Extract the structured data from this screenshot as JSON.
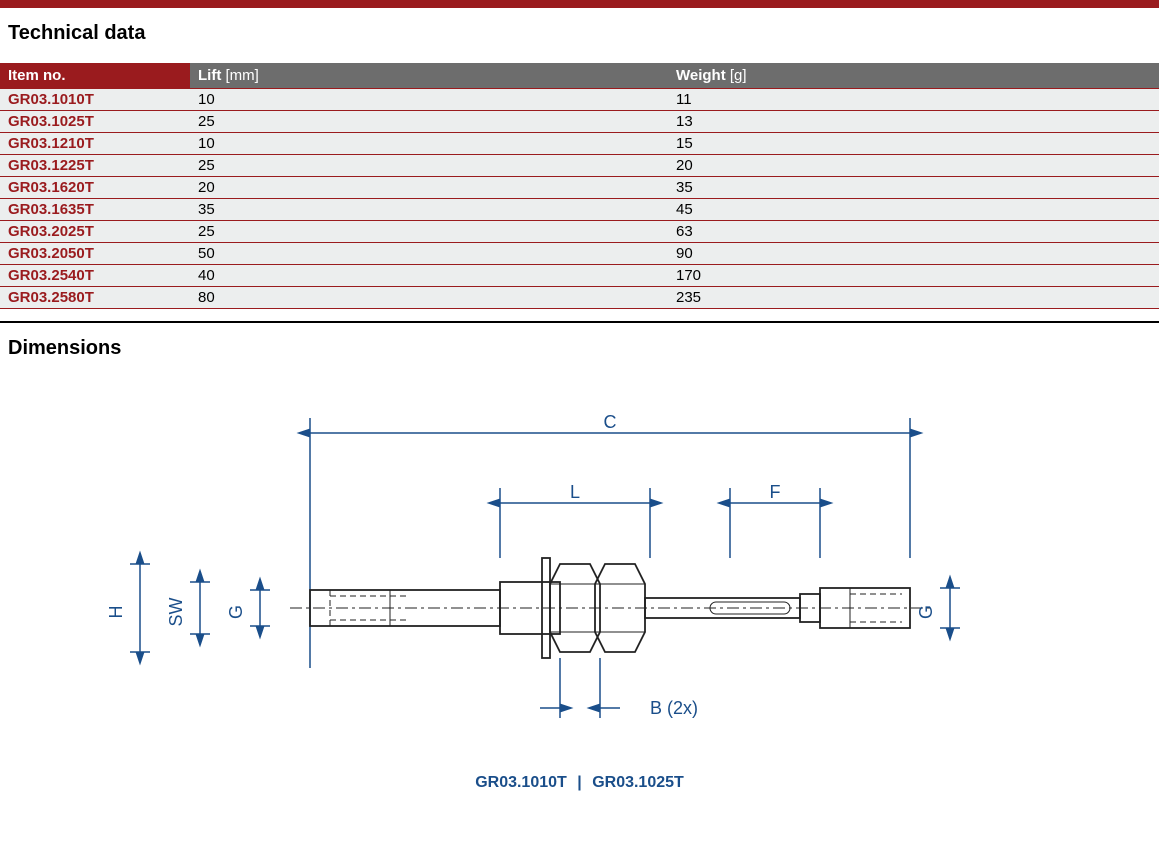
{
  "colors": {
    "brand_red": "#9a1b1e",
    "header_grey": "#6d6d6d",
    "row_bg": "#eceeee",
    "dim_blue": "#1a4e8a",
    "part_stroke": "#222222",
    "background": "#ffffff"
  },
  "sections": {
    "tech_title": "Technical data",
    "dim_title": "Dimensions"
  },
  "table": {
    "columns": {
      "item": {
        "label": "Item no.",
        "unit": ""
      },
      "lift": {
        "label": "Lift",
        "unit": " [mm]"
      },
      "weight": {
        "label": "Weight",
        "unit": " [g]"
      }
    },
    "rows": [
      {
        "item": "GR03.1010T",
        "lift": "10",
        "weight": "11"
      },
      {
        "item": "GR03.1025T",
        "lift": "25",
        "weight": "13"
      },
      {
        "item": "GR03.1210T",
        "lift": "10",
        "weight": "15"
      },
      {
        "item": "GR03.1225T",
        "lift": "25",
        "weight": "20"
      },
      {
        "item": "GR03.1620T",
        "lift": "20",
        "weight": "35"
      },
      {
        "item": "GR03.1635T",
        "lift": "35",
        "weight": "45"
      },
      {
        "item": "GR03.2025T",
        "lift": "25",
        "weight": "63"
      },
      {
        "item": "GR03.2050T",
        "lift": "50",
        "weight": "90"
      },
      {
        "item": "GR03.2540T",
        "lift": "40",
        "weight": "170"
      },
      {
        "item": "GR03.2580T",
        "lift": "80",
        "weight": "235"
      }
    ]
  },
  "diagram": {
    "type": "engineering-drawing",
    "labels": {
      "C": "C",
      "L": "L",
      "F": "F",
      "B": "B (2x)",
      "H": "H",
      "SW": "SW",
      "G": "G",
      "G2": "G"
    },
    "caption_left": "GR03.1010T",
    "caption_sep": "|",
    "caption_right": "GR03.1025T",
    "fontsize_labels": 18,
    "line_color": "#1a4e8a",
    "part_color": "#222222"
  }
}
